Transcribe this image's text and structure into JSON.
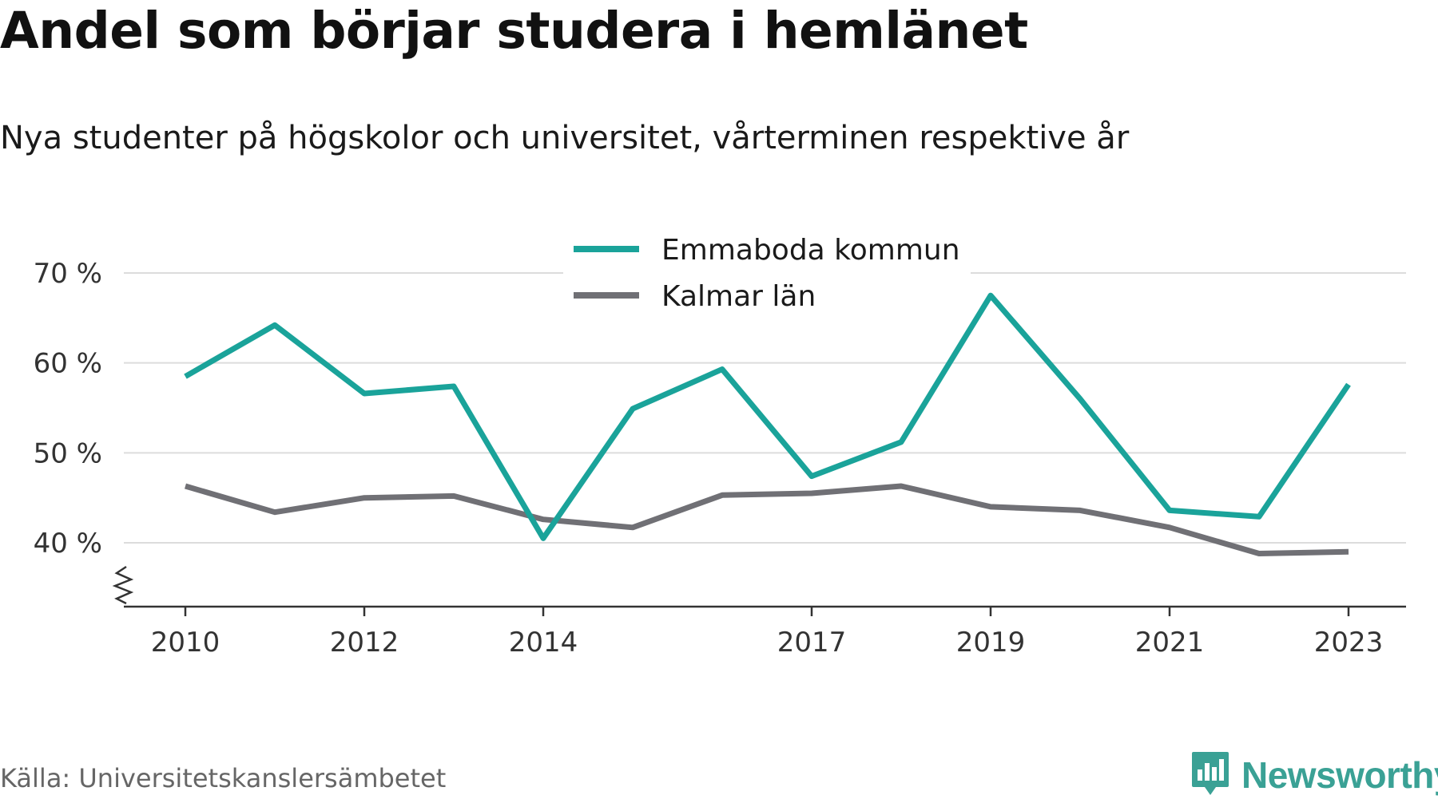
{
  "title": "Andel som börjar studera i hemlänet",
  "subtitle": "Nya studenter på högskolor och universitet, vårterminen respektive år",
  "source": "Källa: Universitetskanslersämbetet",
  "brand": {
    "name": "Newsworthy",
    "icon": "newsworthy-logo-icon",
    "color": "#3aa195"
  },
  "chart_data": {
    "type": "line",
    "x": [
      2010,
      2011,
      2012,
      2013,
      2014,
      2015,
      2016,
      2017,
      2018,
      2019,
      2020,
      2021,
      2022,
      2023
    ],
    "x_tick_labels": [
      "2010",
      "2012",
      "2014",
      "2017",
      "2019",
      "2021",
      "2023"
    ],
    "y_tick_labels": [
      "40 %",
      "50 %",
      "60 %",
      "70 %"
    ],
    "y_ticks": [
      40,
      50,
      60,
      70
    ],
    "ylim": [
      33,
      71
    ],
    "grid": true,
    "axis_break": true,
    "legend_position": "top-center",
    "series": [
      {
        "name": "Emmaboda kommun",
        "color": "#1aa39a",
        "values": [
          58.5,
          64.2,
          56.6,
          57.4,
          40.5,
          54.9,
          59.3,
          47.4,
          51.2,
          67.5,
          56.0,
          43.6,
          42.9,
          57.6
        ]
      },
      {
        "name": "Kalmar län",
        "color": "#707075",
        "values": [
          46.3,
          43.4,
          45.0,
          45.2,
          42.6,
          41.7,
          45.3,
          45.5,
          46.3,
          44.0,
          43.6,
          41.7,
          38.8,
          39.0
        ]
      }
    ]
  }
}
